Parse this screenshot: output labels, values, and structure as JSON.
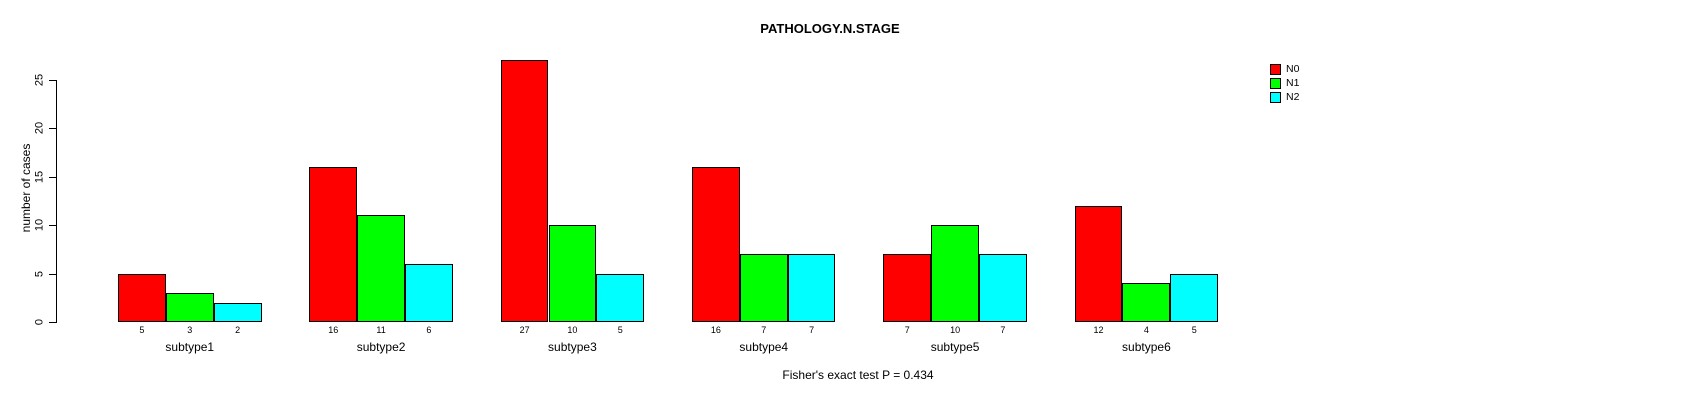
{
  "chart_data": {
    "type": "bar",
    "title": "PATHOLOGY.N.STAGE",
    "ylabel": "number of cases",
    "xlabel": "",
    "footnote": "Fisher's exact test P = 0.434",
    "categories": [
      "subtype1",
      "subtype2",
      "subtype3",
      "subtype4",
      "subtype5",
      "subtype6"
    ],
    "series": [
      {
        "name": "N0",
        "color": "#ff0000",
        "values": [
          5,
          16,
          27,
          16,
          7,
          12
        ]
      },
      {
        "name": "N1",
        "color": "#00ff00",
        "values": [
          3,
          11,
          10,
          7,
          10,
          4
        ]
      },
      {
        "name": "N2",
        "color": "#00ffff",
        "values": [
          2,
          6,
          5,
          7,
          7,
          5
        ]
      }
    ],
    "yticks": [
      0,
      5,
      10,
      15,
      20,
      25
    ],
    "ylim": [
      0,
      27
    ],
    "grid": false,
    "bar_value_labels": true,
    "legend": {
      "position": "right",
      "entries": [
        {
          "label": "N0",
          "color": "#ff0000"
        },
        {
          "label": "N1",
          "color": "#00ff00"
        },
        {
          "label": "N2",
          "color": "#00ffff"
        }
      ]
    }
  }
}
